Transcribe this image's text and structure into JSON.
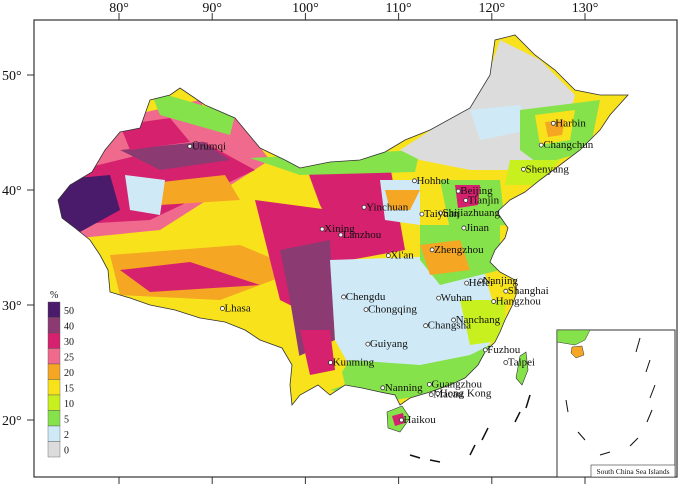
{
  "map": {
    "lon_ticks": [
      {
        "label": "80°",
        "lon": 80
      },
      {
        "label": "90°",
        "lon": 90
      },
      {
        "label": "100°",
        "lon": 100
      },
      {
        "label": "110°",
        "lon": 110
      },
      {
        "label": "120°",
        "lon": 120
      },
      {
        "label": "130°",
        "lon": 130
      }
    ],
    "lat_ticks": [
      {
        "label": "50°",
        "lat": 50
      },
      {
        "label": "40°",
        "lat": 40
      },
      {
        "label": "30°",
        "lat": 30
      },
      {
        "label": "20°",
        "lat": 20
      }
    ],
    "legend": {
      "unit": "%",
      "classes": [
        {
          "label": "50",
          "color": "#4a1a6b"
        },
        {
          "label": "40",
          "color": "#8b3a72"
        },
        {
          "label": "30",
          "color": "#d6216e"
        },
        {
          "label": "25",
          "color": "#f06a8e"
        },
        {
          "label": "20",
          "color": "#f5a623"
        },
        {
          "label": "15",
          "color": "#f7e21b"
        },
        {
          "label": "10",
          "color": "#c8f01e"
        },
        {
          "label": "5",
          "color": "#86e24a"
        },
        {
          "label": "2",
          "color": "#cfeaf6"
        },
        {
          "label": "0",
          "color": "#dcdcdc"
        }
      ]
    },
    "cities": [
      {
        "name": "Harbin",
        "lon": 126.6,
        "lat": 45.8
      },
      {
        "name": "Changchun",
        "lon": 125.3,
        "lat": 43.9
      },
      {
        "name": "Shenyang",
        "lon": 123.4,
        "lat": 41.8
      },
      {
        "name": "Ürümqi",
        "lon": 87.6,
        "lat": 43.8
      },
      {
        "name": "Hohhot",
        "lon": 111.7,
        "lat": 40.8
      },
      {
        "name": "Beijing",
        "lon": 116.4,
        "lat": 39.9
      },
      {
        "name": "Tianjin",
        "lon": 117.2,
        "lat": 39.1
      },
      {
        "name": "Yinchuan",
        "lon": 106.3,
        "lat": 38.5
      },
      {
        "name": "Shijiazhuang",
        "lon": 114.5,
        "lat": 38.0
      },
      {
        "name": "Taiyuan",
        "lon": 112.5,
        "lat": 37.9
      },
      {
        "name": "Jinan",
        "lon": 117.0,
        "lat": 36.7
      },
      {
        "name": "Xining",
        "lon": 101.8,
        "lat": 36.6
      },
      {
        "name": "Lanzhou",
        "lon": 103.8,
        "lat": 36.1
      },
      {
        "name": "Zhengzhou",
        "lon": 113.6,
        "lat": 34.8
      },
      {
        "name": "Xi'an",
        "lon": 108.9,
        "lat": 34.3
      },
      {
        "name": "Nanjing",
        "lon": 118.8,
        "lat": 32.1
      },
      {
        "name": "Hefei",
        "lon": 117.3,
        "lat": 31.9
      },
      {
        "name": "Shanghai",
        "lon": 121.5,
        "lat": 31.2
      },
      {
        "name": "Hangzhou",
        "lon": 120.2,
        "lat": 30.3
      },
      {
        "name": "Wuhan",
        "lon": 114.3,
        "lat": 30.6
      },
      {
        "name": "Chengdu",
        "lon": 104.1,
        "lat": 30.7
      },
      {
        "name": "Chongqing",
        "lon": 106.5,
        "lat": 29.6
      },
      {
        "name": "Lhasa",
        "lon": 91.1,
        "lat": 29.7
      },
      {
        "name": "Nanchang",
        "lon": 115.9,
        "lat": 28.7
      },
      {
        "name": "Changsha",
        "lon": 112.9,
        "lat": 28.2
      },
      {
        "name": "Guiyang",
        "lon": 106.7,
        "lat": 26.6
      },
      {
        "name": "Fuzhou",
        "lon": 119.3,
        "lat": 26.1
      },
      {
        "name": "Taipei",
        "lon": 121.5,
        "lat": 25.0
      },
      {
        "name": "Kunming",
        "lon": 102.7,
        "lat": 25.0
      },
      {
        "name": "Nanning",
        "lon": 108.3,
        "lat": 22.8
      },
      {
        "name": "Guangzhou",
        "lon": 113.3,
        "lat": 23.1
      },
      {
        "name": "Macau",
        "lon": 113.5,
        "lat": 22.2
      },
      {
        "name": "Hong Kong",
        "lon": 114.2,
        "lat": 22.3
      },
      {
        "name": "Haikou",
        "lon": 110.3,
        "lat": 20.0
      }
    ],
    "inset_label": "South China Sea Islands"
  }
}
